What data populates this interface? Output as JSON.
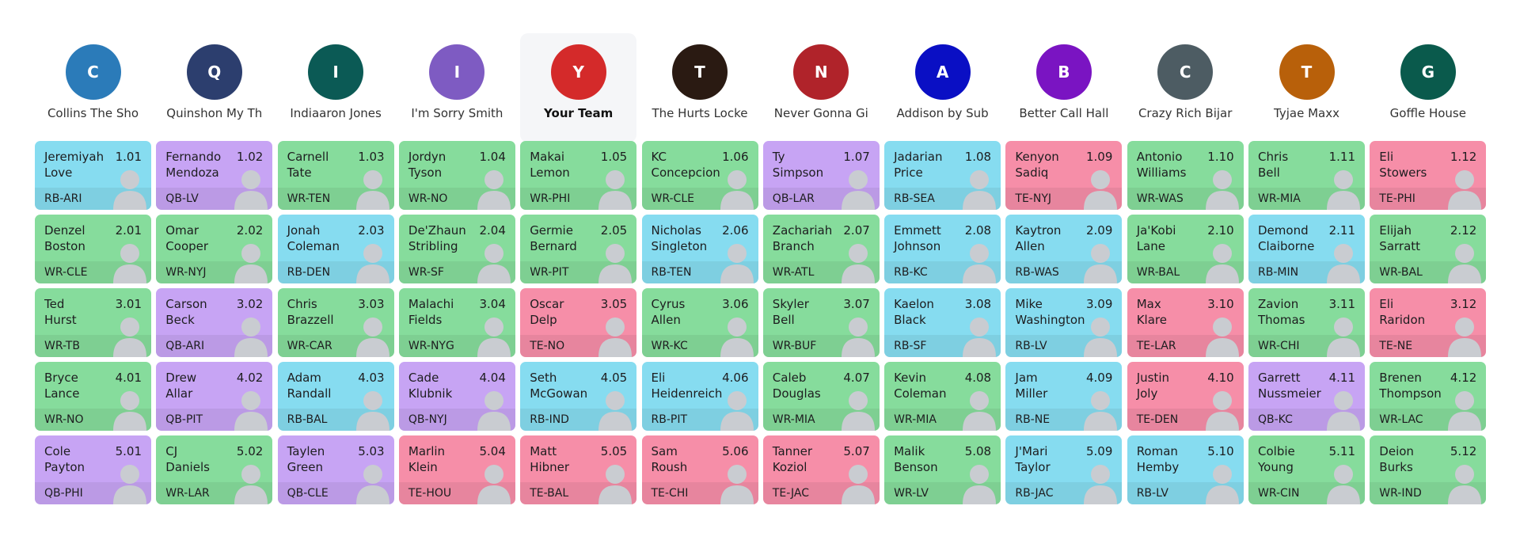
{
  "teams": [
    {
      "initial": "C",
      "name": "Collins The Sho",
      "color": "#2b7bb9"
    },
    {
      "initial": "Q",
      "name": "Quinshon My Th",
      "color": "#2c3e6e"
    },
    {
      "initial": "I",
      "name": "Indiaaron Jones",
      "color": "#0b5a55"
    },
    {
      "initial": "I",
      "name": "I'm Sorry Smith",
      "color": "#7e5bc2"
    },
    {
      "initial": "Y",
      "name": "Your Team",
      "color": "#d42a2a"
    },
    {
      "initial": "T",
      "name": "The Hurts Locke",
      "color": "#2a1a12"
    },
    {
      "initial": "N",
      "name": "Never Gonna Gi",
      "color": "#b0232a"
    },
    {
      "initial": "A",
      "name": "Addison by Sub",
      "color": "#0a0fc4"
    },
    {
      "initial": "B",
      "name": "Better Call Hall",
      "color": "#7a14c2"
    },
    {
      "initial": "C",
      "name": "Crazy Rich Bijar",
      "color": "#4d5c63"
    },
    {
      "initial": "T",
      "name": "Tyjae Maxx",
      "color": "#b8600a"
    },
    {
      "initial": "G",
      "name": "Goffle House",
      "color": "#0a5a4c"
    }
  ],
  "rounds": [
    [
      [
        "Jeremiyah",
        "Love",
        "1.01",
        "RB-ARI"
      ],
      [
        "Fernando",
        "Mendoza",
        "1.02",
        "QB-LV"
      ],
      [
        "Carnell",
        "Tate",
        "1.03",
        "WR-TEN"
      ],
      [
        "Jordyn",
        "Tyson",
        "1.04",
        "WR-NO"
      ],
      [
        "Makai",
        "Lemon",
        "1.05",
        "WR-PHI"
      ],
      [
        "KC",
        "Concepcion",
        "1.06",
        "WR-CLE"
      ],
      [
        "Ty",
        "Simpson",
        "1.07",
        "QB-LAR"
      ],
      [
        "Jadarian",
        "Price",
        "1.08",
        "RB-SEA"
      ],
      [
        "Kenyon",
        "Sadiq",
        "1.09",
        "TE-NYJ"
      ],
      [
        "Antonio",
        "Williams",
        "1.10",
        "WR-WAS"
      ],
      [
        "Chris",
        "Bell",
        "1.11",
        "WR-MIA"
      ],
      [
        "Eli",
        "Stowers",
        "1.12",
        "TE-PHI"
      ]
    ],
    [
      [
        "Denzel",
        "Boston",
        "2.01",
        "WR-CLE"
      ],
      [
        "Omar",
        "Cooper",
        "2.02",
        "WR-NYJ"
      ],
      [
        "Jonah",
        "Coleman",
        "2.03",
        "RB-DEN"
      ],
      [
        "De'Zhaun",
        "Stribling",
        "2.04",
        "WR-SF"
      ],
      [
        "Germie",
        "Bernard",
        "2.05",
        "WR-PIT"
      ],
      [
        "Nicholas",
        "Singleton",
        "2.06",
        "RB-TEN"
      ],
      [
        "Zachariah",
        "Branch",
        "2.07",
        "WR-ATL"
      ],
      [
        "Emmett",
        "Johnson",
        "2.08",
        "RB-KC"
      ],
      [
        "Kaytron",
        "Allen",
        "2.09",
        "RB-WAS"
      ],
      [
        "Ja'Kobi",
        "Lane",
        "2.10",
        "WR-BAL"
      ],
      [
        "Demond",
        "Claiborne",
        "2.11",
        "RB-MIN"
      ],
      [
        "Elijah",
        "Sarratt",
        "2.12",
        "WR-BAL"
      ]
    ],
    [
      [
        "Ted",
        "Hurst",
        "3.01",
        "WR-TB"
      ],
      [
        "Carson",
        "Beck",
        "3.02",
        "QB-ARI"
      ],
      [
        "Chris",
        "Brazzell",
        "3.03",
        "WR-CAR"
      ],
      [
        "Malachi",
        "Fields",
        "3.04",
        "WR-NYG"
      ],
      [
        "Oscar",
        "Delp",
        "3.05",
        "TE-NO"
      ],
      [
        "Cyrus",
        "Allen",
        "3.06",
        "WR-KC"
      ],
      [
        "Skyler",
        "Bell",
        "3.07",
        "WR-BUF"
      ],
      [
        "Kaelon",
        "Black",
        "3.08",
        "RB-SF"
      ],
      [
        "Mike",
        "Washington",
        "3.09",
        "RB-LV"
      ],
      [
        "Max",
        "Klare",
        "3.10",
        "TE-LAR"
      ],
      [
        "Zavion",
        "Thomas",
        "3.11",
        "WR-CHI"
      ],
      [
        "Eli",
        "Raridon",
        "3.12",
        "TE-NE"
      ]
    ],
    [
      [
        "Bryce",
        "Lance",
        "4.01",
        "WR-NO"
      ],
      [
        "Drew",
        "Allar",
        "4.02",
        "QB-PIT"
      ],
      [
        "Adam",
        "Randall",
        "4.03",
        "RB-BAL"
      ],
      [
        "Cade",
        "Klubnik",
        "4.04",
        "QB-NYJ"
      ],
      [
        "Seth",
        "McGowan",
        "4.05",
        "RB-IND"
      ],
      [
        "Eli",
        "Heidenreich",
        "4.06",
        "RB-PIT"
      ],
      [
        "Caleb",
        "Douglas",
        "4.07",
        "WR-MIA"
      ],
      [
        "Kevin",
        "Coleman",
        "4.08",
        "WR-MIA"
      ],
      [
        "Jam",
        "Miller",
        "4.09",
        "RB-NE"
      ],
      [
        "Justin",
        "Joly",
        "4.10",
        "TE-DEN"
      ],
      [
        "Garrett",
        "Nussmeier",
        "4.11",
        "QB-KC"
      ],
      [
        "Brenen",
        "Thompson",
        "4.12",
        "WR-LAC"
      ]
    ],
    [
      [
        "Cole",
        "Payton",
        "5.01",
        "QB-PHI"
      ],
      [
        "CJ",
        "Daniels",
        "5.02",
        "WR-LAR"
      ],
      [
        "Taylen",
        "Green",
        "5.03",
        "QB-CLE"
      ],
      [
        "Marlin",
        "Klein",
        "5.04",
        "TE-HOU"
      ],
      [
        "Matt",
        "Hibner",
        "5.05",
        "TE-BAL"
      ],
      [
        "Sam",
        "Roush",
        "5.06",
        "TE-CHI"
      ],
      [
        "Tanner",
        "Koziol",
        "5.07",
        "TE-JAC"
      ],
      [
        "Malik",
        "Benson",
        "5.08",
        "WR-LV"
      ],
      [
        "J'Mari",
        "Taylor",
        "5.09",
        "RB-JAC"
      ],
      [
        "Roman",
        "Hemby",
        "5.10",
        "RB-LV"
      ],
      [
        "Colbie",
        "Young",
        "5.11",
        "WR-CIN"
      ],
      [
        "Deion",
        "Burks",
        "5.12",
        "WR-IND"
      ]
    ]
  ]
}
